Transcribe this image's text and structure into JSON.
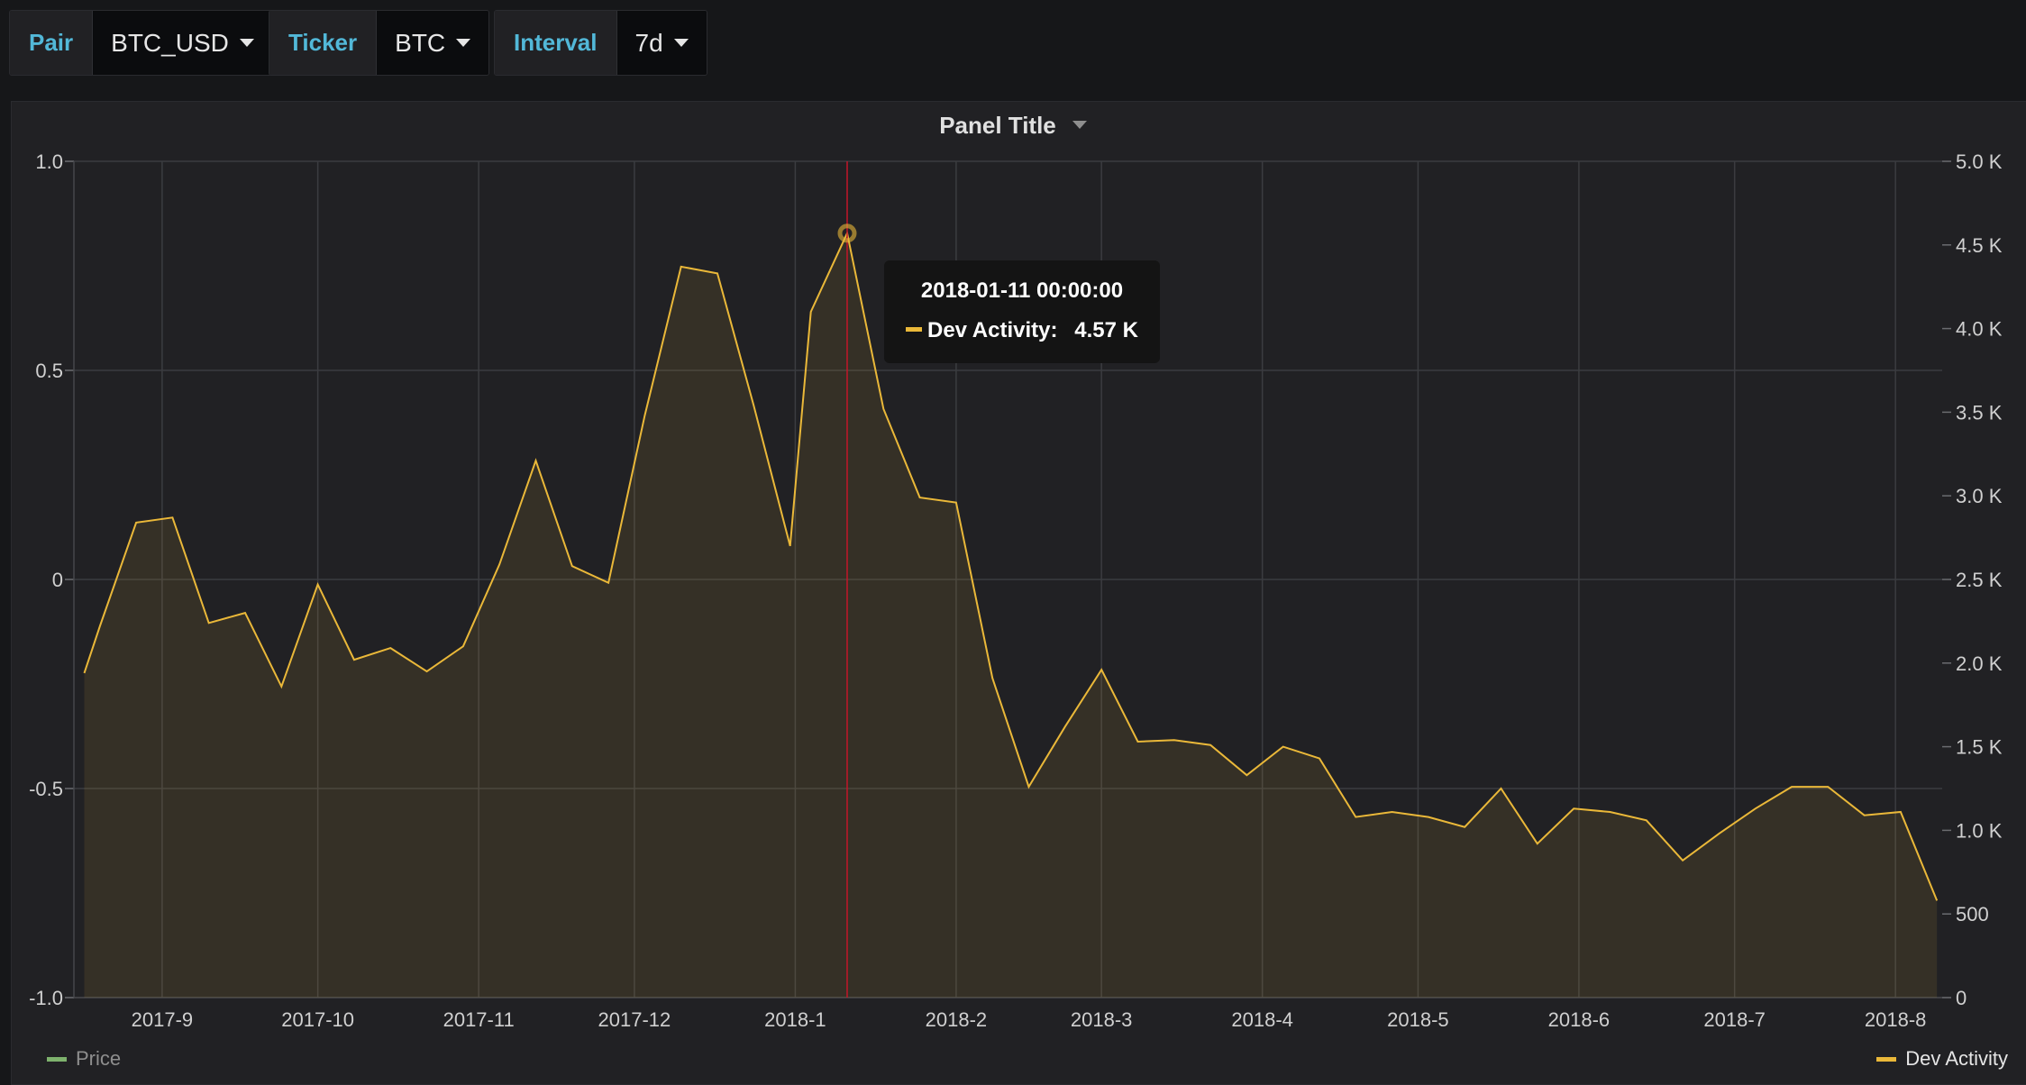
{
  "variables": [
    {
      "label": "Pair",
      "value": "BTC_USD"
    },
    {
      "label": "Ticker",
      "value": "BTC"
    },
    {
      "label": "Interval",
      "value": "7d"
    }
  ],
  "panel": {
    "title": "Panel Title"
  },
  "tooltip": {
    "time": "2018-01-11 00:00:00",
    "series": "Dev Activity:",
    "value": "4.57 K"
  },
  "legend": {
    "price": "Price",
    "dev_activity": "Dev Activity"
  },
  "colors": {
    "price": "#7eb26d",
    "dev_activity": "#eab839",
    "crosshair": "#c4162a",
    "background": "#212124"
  },
  "chart_data": {
    "type": "area",
    "title": "Panel Title",
    "x_ticks": [
      "2017-9",
      "2017-10",
      "2017-11",
      "2017-12",
      "2018-1",
      "2018-2",
      "2018-3",
      "2018-4",
      "2018-5",
      "2018-6",
      "2018-7",
      "2018-8"
    ],
    "y_left": {
      "ticks": [
        "1.0",
        "0.5",
        "0",
        "-0.5",
        "-1.0"
      ],
      "range": [
        -1.0,
        1.0
      ]
    },
    "y_right": {
      "ticks": [
        "5.0 K",
        "4.5 K",
        "4.0 K",
        "3.5 K",
        "3.0 K",
        "2.5 K",
        "2.0 K",
        "1.5 K",
        "1.0 K",
        "500",
        "0"
      ],
      "range": [
        0,
        5000
      ]
    },
    "grid": true,
    "legend": [
      "Price",
      "Dev Activity"
    ],
    "series": [
      {
        "name": "Dev Activity",
        "axis": "right",
        "x": [
          "2017-08-17",
          "2017-08-20",
          "2017-08-27",
          "2017-09-03",
          "2017-09-10",
          "2017-09-17",
          "2017-09-24",
          "2017-10-01",
          "2017-10-08",
          "2017-10-15",
          "2017-10-22",
          "2017-10-29",
          "2017-11-05",
          "2017-11-12",
          "2017-11-19",
          "2017-11-26",
          "2017-12-03",
          "2017-12-10",
          "2017-12-17",
          "2017-12-24",
          "2017-12-31",
          "2018-01-04",
          "2018-01-11",
          "2018-01-18",
          "2018-01-25",
          "2018-02-01",
          "2018-02-08",
          "2018-02-15",
          "2018-02-22",
          "2018-03-01",
          "2018-03-08",
          "2018-03-15",
          "2018-03-22",
          "2018-03-29",
          "2018-04-05",
          "2018-04-12",
          "2018-04-19",
          "2018-04-26",
          "2018-05-03",
          "2018-05-10",
          "2018-05-17",
          "2018-05-24",
          "2018-05-31",
          "2018-06-07",
          "2018-06-14",
          "2018-06-21",
          "2018-06-28",
          "2018-07-05",
          "2018-07-12",
          "2018-07-19",
          "2018-07-26",
          "2018-08-02",
          "2018-08-09"
        ],
        "values": [
          1940,
          2220,
          2840,
          2870,
          2240,
          2300,
          1860,
          2470,
          2020,
          2090,
          1950,
          2100,
          2590,
          3210,
          2580,
          2480,
          3480,
          4370,
          4330,
          3540,
          2700,
          4100,
          4570,
          3520,
          2990,
          2960,
          1910,
          1260,
          1620,
          1960,
          1530,
          1540,
          1510,
          1330,
          1500,
          1430,
          1080,
          1110,
          1080,
          1020,
          1250,
          920,
          1130,
          1110,
          1060,
          820,
          980,
          1130,
          1260,
          1260,
          1090,
          1110,
          580
        ]
      },
      {
        "name": "Price",
        "axis": "left",
        "values": []
      }
    ]
  }
}
